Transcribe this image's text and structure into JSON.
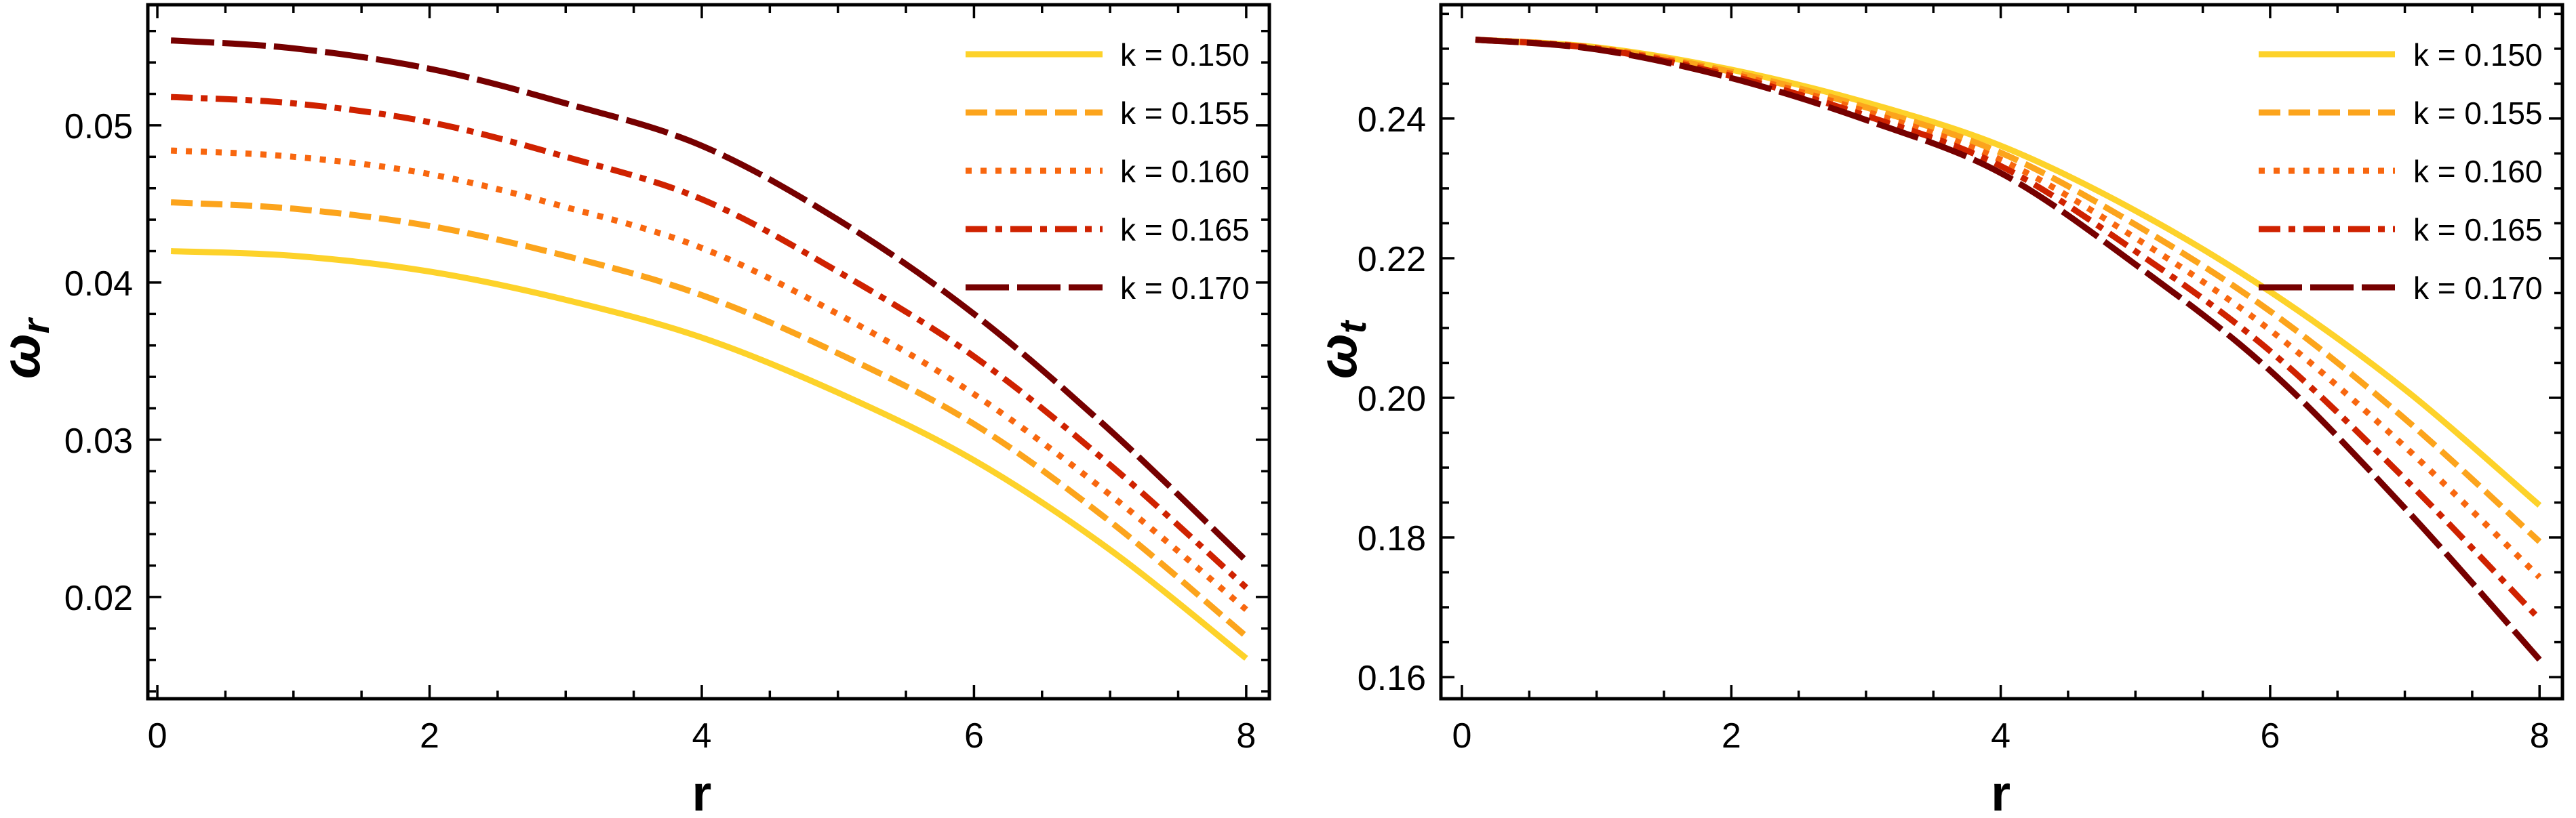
{
  "chart_data": [
    {
      "type": "line",
      "title": "",
      "xlabel": "r",
      "ylabel": "ω",
      "ylabel_subscript": "r",
      "xlim": [
        -0.07,
        8.17
      ],
      "ylim": [
        0.01353,
        0.05767
      ],
      "xticks": [
        0,
        2,
        4,
        6,
        8
      ],
      "xtick_labels": [
        "0",
        "2",
        "4",
        "6",
        "8"
      ],
      "xminor_step": 0.5,
      "yticks": [
        0.02,
        0.03,
        0.04,
        0.05
      ],
      "ytick_labels": [
        "0.02",
        "0.03",
        "0.04",
        "0.05"
      ],
      "yminor_step": 0.002,
      "grid": false,
      "legend_position": "top-right",
      "x": [
        0.1,
        1,
        2,
        3,
        4,
        5,
        6,
        7,
        8
      ],
      "series": [
        {
          "name": "k = 0.150",
          "color": "#FDD22A",
          "style": "solid",
          "values": [
            0.042,
            0.0417,
            0.0407,
            0.0389,
            0.0365,
            0.033,
            0.0287,
            0.023,
            0.0161
          ]
        },
        {
          "name": "k = 0.155",
          "color": "#FCA41C",
          "style": "dashed",
          "values": [
            0.0451,
            0.0447,
            0.0436,
            0.0417,
            0.0392,
            0.0355,
            0.031,
            0.0248,
            0.0175
          ]
        },
        {
          "name": "k = 0.160",
          "color": "#F8670F",
          "style": "dotted",
          "values": [
            0.0484,
            0.048,
            0.0469,
            0.0448,
            0.0422,
            0.038,
            0.0329,
            0.0265,
            0.0192
          ]
        },
        {
          "name": "k = 0.165",
          "color": "#CF2200",
          "style": "dashdot",
          "values": [
            0.0518,
            0.0514,
            0.0502,
            0.048,
            0.0453,
            0.0407,
            0.0353,
            0.0284,
            0.0206
          ]
        },
        {
          "name": "k = 0.170",
          "color": "#760000",
          "style": "longdash",
          "values": [
            0.0554,
            0.0549,
            0.0536,
            0.0514,
            0.0487,
            0.044,
            0.038,
            0.0306,
            0.0223
          ]
        }
      ]
    },
    {
      "type": "line",
      "title": "",
      "xlabel": "r",
      "ylabel": "ω",
      "ylabel_subscript": "t",
      "xlim": [
        -0.156,
        8.17
      ],
      "ylim": [
        0.1569,
        0.2563
      ],
      "xticks": [
        0,
        2,
        4,
        6,
        8
      ],
      "xtick_labels": [
        "0",
        "2",
        "4",
        "6",
        "8"
      ],
      "xminor_step": 0.5,
      "yticks": [
        0.16,
        0.18,
        0.2,
        0.22,
        0.24
      ],
      "ytick_labels": [
        "0.16",
        "0.18",
        "0.20",
        "0.22",
        "0.24"
      ],
      "yminor_step": 0.005,
      "grid": false,
      "legend_position": "top-right",
      "x": [
        0.1,
        1,
        2,
        3,
        4,
        5,
        6,
        7,
        8
      ],
      "series": [
        {
          "name": "k = 0.150",
          "color": "#FDD22A",
          "style": "solid",
          "values": [
            0.2513,
            0.2502,
            0.247,
            0.2423,
            0.2361,
            0.2268,
            0.2152,
            0.2012,
            0.1846
          ]
        },
        {
          "name": "k = 0.155",
          "color": "#FCA41C",
          "style": "dashed",
          "values": [
            0.2513,
            0.2501,
            0.2467,
            0.2416,
            0.2351,
            0.2248,
            0.2124,
            0.197,
            0.1794
          ]
        },
        {
          "name": "k = 0.160",
          "color": "#F8670F",
          "style": "dotted",
          "values": [
            0.2513,
            0.2501,
            0.2464,
            0.241,
            0.2341,
            0.2229,
            0.2097,
            0.193,
            0.1743
          ]
        },
        {
          "name": "k = 0.165",
          "color": "#CF2200",
          "style": "dashdot",
          "values": [
            0.2513,
            0.25,
            0.2461,
            0.2404,
            0.2332,
            0.221,
            0.2067,
            0.1884,
            0.1683
          ]
        },
        {
          "name": "k = 0.170",
          "color": "#760000",
          "style": "longdash",
          "values": [
            0.2513,
            0.2499,
            0.2458,
            0.2398,
            0.2322,
            0.2191,
            0.2039,
            0.1842,
            0.1625
          ]
        }
      ]
    }
  ]
}
